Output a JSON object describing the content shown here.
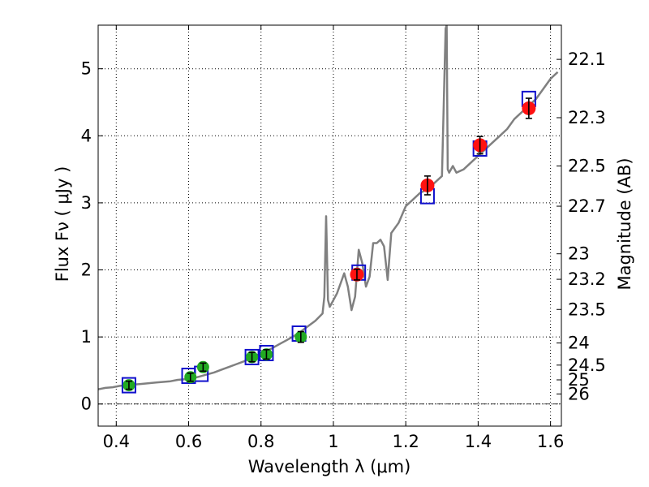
{
  "chart_data": {
    "type": "scatter",
    "title": "",
    "xlabel": "Wavelength  λ (μm)",
    "ylabel": "Flux  Fν  ( μJy )",
    "y2label": "Magnitude (AB)",
    "xlim": [
      0.35,
      1.63
    ],
    "ylim": [
      -0.33,
      5.65
    ],
    "grid": true,
    "x_ticks": [
      0.4,
      0.6,
      0.8,
      1.0,
      1.2,
      1.4,
      1.6
    ],
    "x_tick_labels": [
      "0.4",
      "0.6",
      "0.8",
      "1",
      "1.2",
      "1.4",
      "1.6"
    ],
    "y_ticks": [
      0,
      1,
      2,
      3,
      4,
      5
    ],
    "y_tick_labels": [
      "0",
      "1",
      "2",
      "3",
      "4",
      "5"
    ],
    "y2_ticks": [
      {
        "label": "22.1",
        "flux": 5.14
      },
      {
        "label": "22.3",
        "flux": 4.27
      },
      {
        "label": "22.5",
        "flux": 3.55
      },
      {
        "label": "22.7",
        "flux": 2.95
      },
      {
        "label": "23",
        "flux": 2.24
      },
      {
        "label": "23.2",
        "flux": 1.86
      },
      {
        "label": "23.5",
        "flux": 1.41
      },
      {
        "label": "24",
        "flux": 0.91
      },
      {
        "label": "24.5",
        "flux": 0.58
      },
      {
        "label": "25",
        "flux": 0.36
      },
      {
        "label": "26",
        "flux": 0.15
      }
    ],
    "series": [
      {
        "marker": "line",
        "color": "#808080",
        "x": [
          0.35,
          0.37,
          0.39,
          0.41,
          0.43,
          0.45,
          0.47,
          0.49,
          0.51,
          0.53,
          0.55,
          0.57,
          0.59,
          0.61,
          0.63,
          0.65,
          0.67,
          0.69,
          0.71,
          0.73,
          0.75,
          0.77,
          0.79,
          0.81,
          0.83,
          0.85,
          0.87,
          0.89,
          0.91,
          0.93,
          0.95,
          0.97,
          0.975,
          0.98,
          0.985,
          0.99,
          1.0,
          1.01,
          1.02,
          1.03,
          1.04,
          1.05,
          1.06,
          1.07,
          1.08,
          1.09,
          1.1,
          1.11,
          1.12,
          1.13,
          1.14,
          1.15,
          1.16,
          1.18,
          1.2,
          1.22,
          1.24,
          1.26,
          1.28,
          1.3,
          1.31,
          1.313,
          1.316,
          1.32,
          1.33,
          1.34,
          1.36,
          1.38,
          1.4,
          1.42,
          1.44,
          1.46,
          1.48,
          1.5,
          1.52,
          1.54,
          1.56,
          1.58,
          1.6,
          1.62
        ],
        "y": [
          0.22,
          0.24,
          0.25,
          0.27,
          0.28,
          0.29,
          0.3,
          0.31,
          0.32,
          0.33,
          0.34,
          0.36,
          0.37,
          0.38,
          0.41,
          0.44,
          0.47,
          0.51,
          0.55,
          0.59,
          0.63,
          0.68,
          0.73,
          0.78,
          0.83,
          0.89,
          0.95,
          1.01,
          1.08,
          1.16,
          1.24,
          1.35,
          1.6,
          2.8,
          1.55,
          1.45,
          1.55,
          1.65,
          1.8,
          1.95,
          1.75,
          1.4,
          1.6,
          2.3,
          2.1,
          1.75,
          1.9,
          2.4,
          2.4,
          2.45,
          2.35,
          1.85,
          2.55,
          2.7,
          2.95,
          3.05,
          3.15,
          3.2,
          3.3,
          3.4,
          5.6,
          5.65,
          3.5,
          3.45,
          3.55,
          3.45,
          3.5,
          3.6,
          3.7,
          3.8,
          3.9,
          4.0,
          4.1,
          4.25,
          4.35,
          4.45,
          4.55,
          4.7,
          4.85,
          4.95
        ]
      },
      {
        "marker": "open-square",
        "color": "#1010cc",
        "x": [
          0.435,
          0.6,
          0.635,
          0.775,
          0.815,
          0.905,
          1.07,
          1.26,
          1.405,
          1.54
        ],
        "y": [
          0.28,
          0.42,
          0.45,
          0.7,
          0.76,
          1.05,
          1.96,
          3.1,
          3.81,
          4.55
        ]
      },
      {
        "marker": "filled-circle",
        "color": "#22aa22",
        "x": [
          0.435,
          0.605,
          0.64,
          0.775,
          0.815,
          0.91
        ],
        "y": [
          0.28,
          0.4,
          0.55,
          0.7,
          0.74,
          1.0
        ],
        "yerr": [
          0.06,
          0.06,
          0.06,
          0.07,
          0.07,
          0.08
        ]
      },
      {
        "marker": "filled-circle",
        "color": "#ff1111",
        "x": [
          1.065,
          1.26,
          1.405,
          1.54
        ],
        "y": [
          1.93,
          3.26,
          3.86,
          4.41
        ],
        "yerr": [
          0.08,
          0.14,
          0.13,
          0.15
        ]
      }
    ]
  }
}
